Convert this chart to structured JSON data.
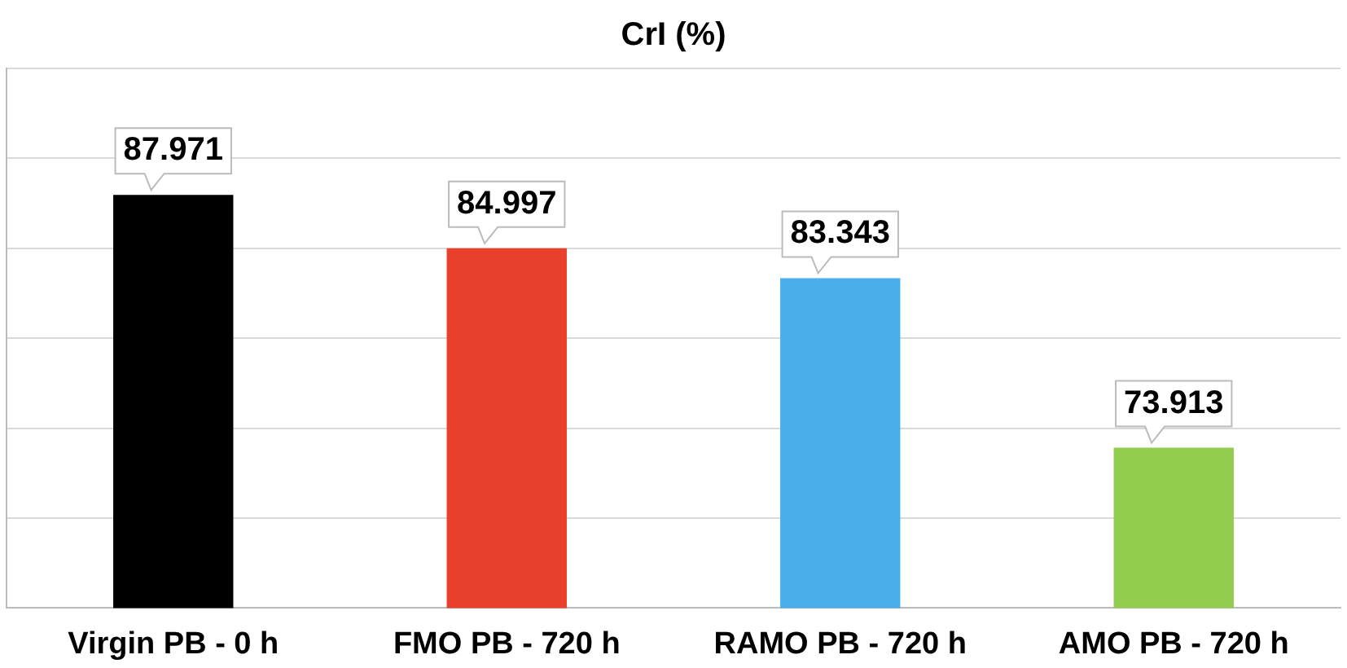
{
  "chart_data": {
    "type": "bar",
    "title": "CrI (%)",
    "categories": [
      "Virgin PB - 0 h",
      "FMO PB - 720 h",
      "RAMO PB - 720 h",
      "AMO PB - 720 h"
    ],
    "values": [
      87.971,
      84.997,
      83.343,
      73.913
    ],
    "colors": [
      "#000000",
      "#e8402a",
      "#4aaeea",
      "#92cd50"
    ],
    "ylim": [
      65,
      95
    ],
    "yticks": [
      {
        "value": 65,
        "label": null
      },
      {
        "value": 70,
        "label": null
      },
      {
        "value": 75,
        "label": null
      },
      {
        "value": 80,
        "label": null
      },
      {
        "value": 85,
        "label": null
      },
      {
        "value": 90,
        "label": null
      },
      {
        "value": 95,
        "label": null
      }
    ],
    "tick_labels": "x",
    "grid": "y",
    "legend": false,
    "data_labels": true
  }
}
